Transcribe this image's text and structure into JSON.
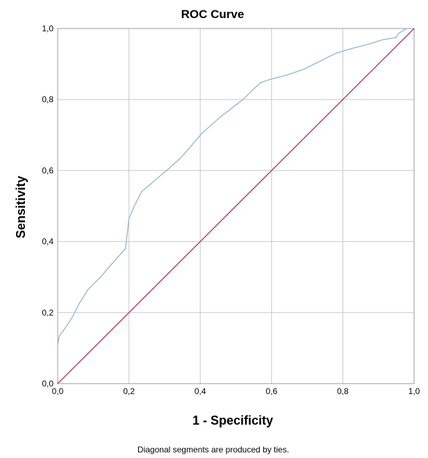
{
  "chart_data": {
    "type": "line",
    "title": "ROC Curve",
    "xlabel": "1 - Specificity",
    "ylabel": "Sensitivity",
    "xlim": [
      0,
      1
    ],
    "ylim": [
      0,
      1
    ],
    "ticks": [
      "0,0",
      "0,2",
      "0,4",
      "0,6",
      "0,8",
      "1,0"
    ],
    "tick_values": [
      0,
      0.2,
      0.4,
      0.6,
      0.8,
      1.0
    ],
    "grid": true,
    "footnote": "Diagonal segments are produced by ties.",
    "series": [
      {
        "color": "#8fb3d9",
        "x": [
          0,
          0.005,
          0.02,
          0.04,
          0.06,
          0.085,
          0.12,
          0.15,
          0.19,
          0.195,
          0.2,
          0.215,
          0.235,
          0.27,
          0.305,
          0.345,
          0.375,
          0.405,
          0.455,
          0.52,
          0.545,
          0.57,
          0.6,
          0.64,
          0.69,
          0.73,
          0.78,
          0.83,
          0.87,
          0.91,
          0.95,
          0.955,
          0.97,
          0.98,
          1.0
        ],
        "y": [
          0.11,
          0.135,
          0.155,
          0.185,
          0.225,
          0.265,
          0.3,
          0.335,
          0.38,
          0.42,
          0.465,
          0.5,
          0.54,
          0.57,
          0.6,
          0.635,
          0.67,
          0.705,
          0.75,
          0.8,
          0.825,
          0.848,
          0.858,
          0.868,
          0.885,
          0.905,
          0.93,
          0.945,
          0.955,
          0.968,
          0.975,
          0.985,
          0.995,
          1.0,
          1.0
        ]
      },
      {
        "color": "#b8426a",
        "x": [
          0,
          1
        ],
        "y": [
          0,
          1
        ]
      }
    ]
  }
}
